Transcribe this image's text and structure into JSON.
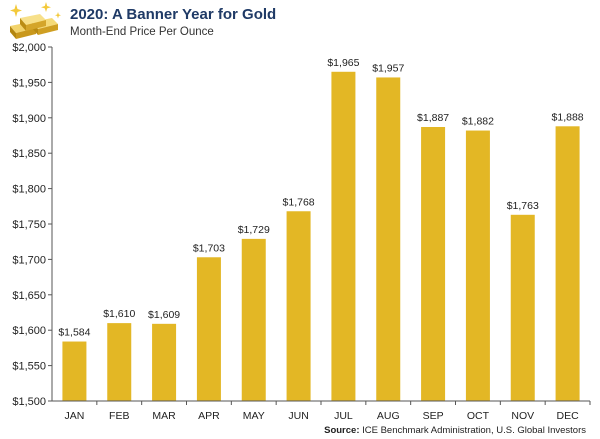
{
  "header": {
    "title": "2020: A Banner Year for Gold",
    "subtitle": "Month-End Price Per Ounce"
  },
  "source": {
    "label": "Source:",
    "text": "ICE Benchmark Administration, U.S. Global Investors"
  },
  "logo": {
    "icon": "gold-bars-icon"
  },
  "colors": {
    "bar": "#E3B725",
    "title": "#1F3A66",
    "axis": "#555555"
  },
  "chart_data": {
    "type": "bar",
    "title": "2020: A Banner Year for Gold",
    "subtitle": "Month-End Price Per Ounce",
    "xlabel": "",
    "ylabel": "",
    "categories": [
      "JAN",
      "FEB",
      "MAR",
      "APR",
      "MAY",
      "JUN",
      "JUL",
      "AUG",
      "SEP",
      "OCT",
      "NOV",
      "DEC"
    ],
    "values": [
      1584,
      1610,
      1609,
      1703,
      1729,
      1768,
      1965,
      1957,
      1887,
      1882,
      1763,
      1888
    ],
    "value_labels": [
      "$1,584",
      "$1,610",
      "$1,609",
      "$1,703",
      "$1,729",
      "$1,768",
      "$1,965",
      "$1,957",
      "$1,887",
      "$1,882",
      "$1,763",
      "$1,888"
    ],
    "ylim": [
      1500,
      2000
    ],
    "yticks": [
      1500,
      1550,
      1600,
      1650,
      1700,
      1750,
      1800,
      1850,
      1900,
      1950,
      2000
    ],
    "ytick_labels": [
      "$1,500",
      "$1,550",
      "$1,600",
      "$1,650",
      "$1,700",
      "$1,750",
      "$1,800",
      "$1,850",
      "$1,900",
      "$1,950",
      "$2,000"
    ],
    "grid": false,
    "legend": "none"
  }
}
